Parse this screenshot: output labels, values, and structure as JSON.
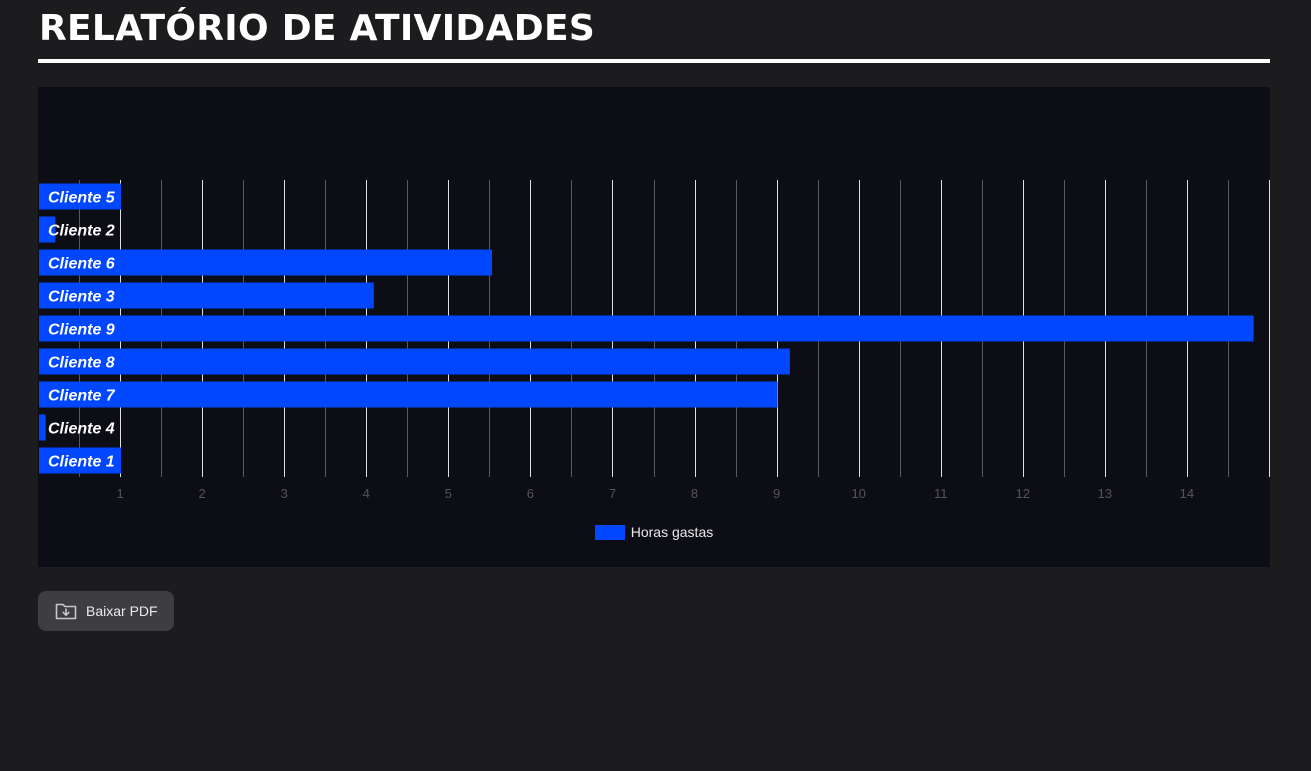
{
  "header": {
    "title": "RELATÓRIO DE ATIVIDADES"
  },
  "chart_data": {
    "type": "bar",
    "orientation": "horizontal",
    "title": "",
    "xlabel": "",
    "ylabel": "",
    "categories": [
      "Cliente 5",
      "Cliente 2",
      "Cliente 6",
      "Cliente 3",
      "Cliente 9",
      "Cliente 8",
      "Cliente 7",
      "Cliente 4",
      "Cliente 1"
    ],
    "series": [
      {
        "name": "Horas gastas",
        "values": [
          1.0,
          0.2,
          5.52,
          4.08,
          14.8,
          9.15,
          9.0,
          0.08,
          1.0
        ]
      }
    ],
    "xlim": [
      0,
      15
    ],
    "xticks": [
      1,
      2,
      3,
      4,
      5,
      6,
      7,
      8,
      9,
      10,
      11,
      12,
      13,
      14
    ],
    "grid": true,
    "legend": "bottom-center",
    "colors": {
      "bar": "#0047ff",
      "major_grid": "#e0e0e0",
      "minor_grid": "#5a5a5a",
      "tick_label": "#555555",
      "category_label": "#ffffff"
    }
  },
  "actions": {
    "download_label": "Baixar PDF",
    "download_icon": "folder-download-icon"
  }
}
